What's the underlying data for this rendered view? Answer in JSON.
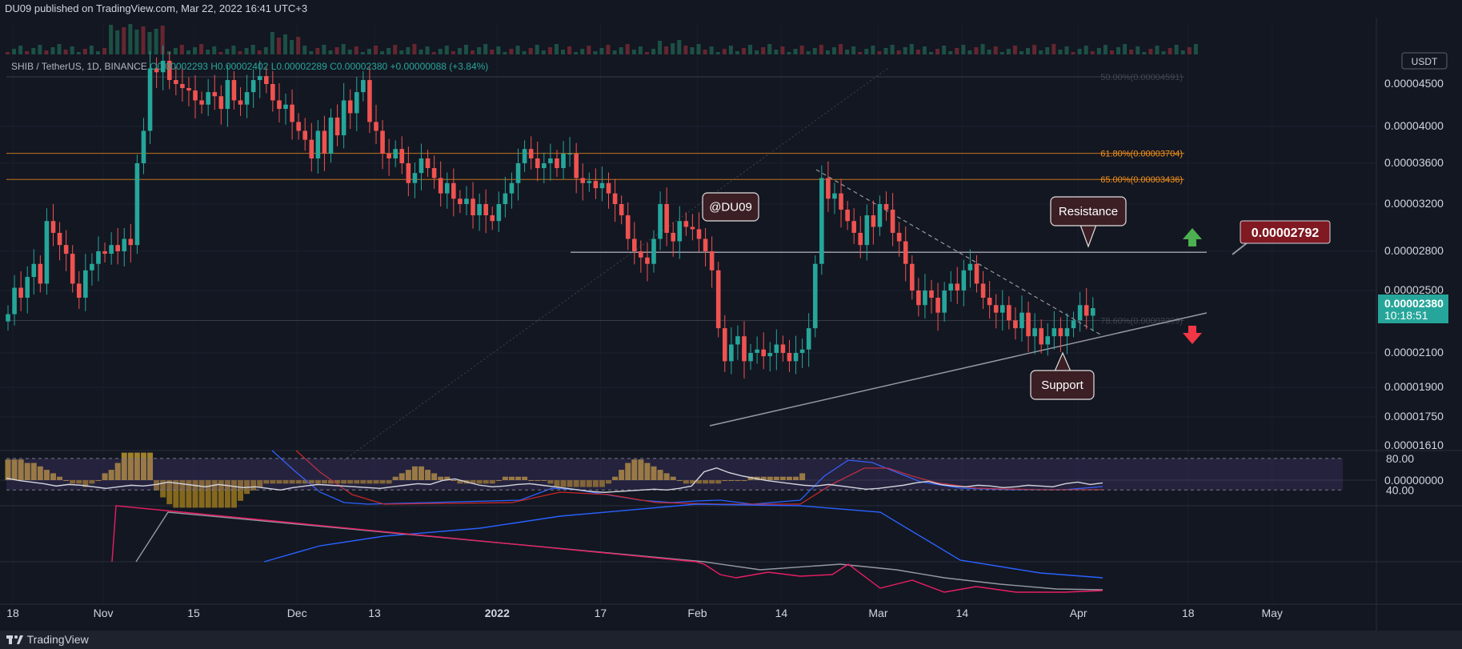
{
  "header": {
    "published": "DU09 published on TradingView.com, Mar 22, 2022 16:41 UTC+3"
  },
  "legend": {
    "symbol": "SHIB / TetherUS, 1D, BINANCE",
    "o": "O0.00002293",
    "h": "H0.00002402",
    "l": "L0.00002289",
    "c": "C0.00002380",
    "change": "+0.00000088 (+3.84%)"
  },
  "currency_label": "USDT",
  "price_axis": {
    "labels": [
      {
        "text": "0.00004500",
        "v": 4500
      },
      {
        "text": "0.00004000",
        "v": 4000
      },
      {
        "text": "0.00003600",
        "v": 3600
      },
      {
        "text": "0.00003200",
        "v": 3200
      },
      {
        "text": "0.00002800",
        "v": 2800
      },
      {
        "text": "0.00002500",
        "v": 2500
      },
      {
        "text": "0.00002100",
        "v": 2100
      },
      {
        "text": "0.00001900",
        "v": 1900
      },
      {
        "text": "0.00001750",
        "v": 1750
      },
      {
        "text": "0.00001610",
        "v": 1610
      }
    ]
  },
  "current_price": {
    "label": "0.00002380",
    "countdown": "10:18:51",
    "v": 2380
  },
  "fib_levels": [
    {
      "label": "50.00%(0.00004591)",
      "v": 4591,
      "color": "#5d6068"
    },
    {
      "label": "61.80%(0.00003704)",
      "v": 3704,
      "color": "#f7931a"
    },
    {
      "label": "65.00%(0.00003436)",
      "v": 3436,
      "color": "#f7931a"
    },
    {
      "label": "78.60%(0.00002299)",
      "v": 2299,
      "color": "#5d6068"
    }
  ],
  "annotations": {
    "watermark": "@DU09",
    "resistance": "Resistance",
    "support": "Support",
    "target_price": "0.00002792"
  },
  "time_axis": {
    "labels": [
      {
        "text": "18",
        "d": -4
      },
      {
        "text": "Nov",
        "d": 10
      },
      {
        "text": "15",
        "d": 24
      },
      {
        "text": "Dec",
        "d": 40
      },
      {
        "text": "13",
        "d": 52
      },
      {
        "text": "2022",
        "d": 71
      },
      {
        "text": "17",
        "d": 87
      },
      {
        "text": "Feb",
        "d": 102
      },
      {
        "text": "14",
        "d": 115
      },
      {
        "text": "Mar",
        "d": 130
      },
      {
        "text": "14",
        "d": 143
      },
      {
        "text": "Apr",
        "d": 161
      },
      {
        "text": "18",
        "d": 178
      },
      {
        "text": "May",
        "d": 191
      }
    ]
  },
  "macd_axis": {
    "label": "0.00000000"
  },
  "rsi_axis": {
    "upper": "80.00",
    "lower": "40.00"
  },
  "footer": {
    "brand": "TradingView"
  },
  "chart_data": {
    "type": "candlestick",
    "symbol": "SHIB / TetherUS",
    "interval": "1D",
    "exchange": "BINANCE",
    "price_unit": "USDT (x1e-8)",
    "candles_close": [
      2340,
      2520,
      2450,
      2600,
      2700,
      2550,
      3050,
      2950,
      2850,
      2780,
      2550,
      2450,
      2650,
      2700,
      2800,
      2780,
      2850,
      2800,
      2900,
      2850,
      3600,
      3950,
      4700,
      4650,
      4800,
      4550,
      4500,
      4450,
      4420,
      4300,
      4250,
      4400,
      4350,
      4200,
      4550,
      4300,
      4250,
      4400,
      4550,
      4600,
      4500,
      4300,
      4200,
      4250,
      4050,
      3950,
      3850,
      3650,
      3950,
      3700,
      4100,
      3900,
      4300,
      4150,
      4400,
      4550,
      4050,
      3950,
      3700,
      3650,
      3750,
      3600,
      3400,
      3500,
      3650,
      3550,
      3450,
      3300,
      3400,
      3250,
      3200,
      3250,
      3100,
      3200,
      3100,
      3050,
      3200,
      3300,
      3400,
      3600,
      3750,
      3650,
      3550,
      3600,
      3650,
      3550,
      3700,
      3700,
      3450,
      3400,
      3420,
      3350,
      3400,
      3300,
      3200,
      3100,
      2900,
      2800,
      2750,
      2700,
      2900,
      3200,
      2950,
      2880,
      3050,
      3000,
      2980,
      2900,
      2800,
      2650,
      2250,
      2050,
      2150,
      2200,
      2050,
      2100,
      2120,
      2080,
      2100,
      2150,
      2100,
      2050,
      2100,
      2120,
      2250,
      2700,
      3450,
      3250,
      3300,
      3150,
      3050,
      2950,
      2850,
      3100,
      3000,
      3200,
      3150,
      2950,
      2880,
      2700,
      2500,
      2400,
      2500,
      2450,
      2350,
      2500,
      2550,
      2500,
      2650,
      2700,
      2550,
      2450,
      2400,
      2350,
      2400,
      2300,
      2250,
      2350,
      2200,
      2250,
      2150,
      2200,
      2250,
      2200,
      2250,
      2300,
      2400,
      2330,
      2380
    ],
    "macd_hist": [
      6,
      6,
      6,
      5,
      5,
      4,
      3,
      2,
      1,
      0,
      -1,
      -1,
      -2,
      -1,
      0,
      2,
      3,
      5,
      8,
      8,
      8,
      8,
      8,
      -3,
      -5,
      -7,
      -8,
      -8,
      -8,
      -8,
      -8,
      -8,
      -8,
      -8,
      -8,
      -8,
      -6,
      -4,
      -3,
      -2,
      -1,
      -1,
      -1,
      -1,
      -1,
      -1,
      -1,
      -1,
      -1,
      -1,
      -1,
      -1,
      -1,
      -1,
      -1,
      -1,
      -1,
      -1,
      -1,
      -1,
      1,
      2,
      3,
      4,
      4,
      3,
      2,
      1,
      1,
      0,
      -1,
      -1,
      -1,
      -1,
      -1,
      -1,
      0,
      1,
      1,
      1,
      1,
      0,
      0,
      0,
      -1,
      -2,
      -2,
      -2,
      -2,
      -2,
      -2,
      -2,
      -2,
      -1,
      1,
      3,
      5,
      6,
      6,
      5,
      4,
      3,
      2,
      1,
      0,
      -1,
      -1,
      -1,
      -1,
      -1,
      -1,
      0,
      0,
      0,
      0,
      1,
      1,
      1,
      1,
      1,
      1,
      1,
      1,
      2
    ],
    "rsi": [
      55,
      52,
      50,
      48,
      45,
      47,
      46,
      44,
      42,
      44,
      46,
      45,
      47,
      50,
      48,
      46,
      44,
      47,
      45,
      43,
      44,
      42,
      40,
      43,
      45,
      47,
      46,
      45,
      44,
      43,
      42,
      44,
      46,
      48,
      47,
      52,
      54,
      50,
      46,
      44,
      45,
      47,
      48,
      46,
      44,
      42,
      40,
      38,
      37,
      38,
      39,
      40,
      41,
      40,
      42,
      45,
      63,
      68,
      62,
      58,
      55,
      52,
      50,
      48,
      46,
      45,
      47,
      45,
      43,
      41,
      42,
      44,
      46,
      49,
      51,
      47,
      45,
      44,
      46,
      45,
      43,
      44,
      46,
      45,
      44,
      48,
      50,
      47,
      49
    ],
    "rsi_bands": [
      40,
      80
    ],
    "fibonacci": {
      "50.0%": 4591,
      "61.8%": 3704,
      "65.0%": 3436,
      "78.6%": 2299
    },
    "resistance": 2792,
    "last_price": 2380
  }
}
